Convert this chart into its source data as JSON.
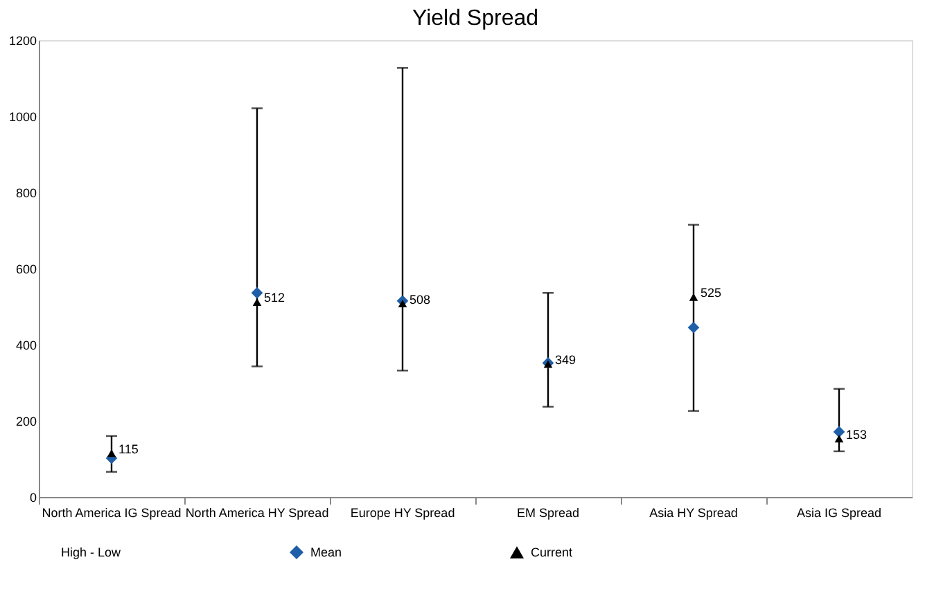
{
  "chart_data": {
    "type": "scatter",
    "title": "Yield Spread",
    "categories": [
      "North America IG Spread",
      "North America HY Spread",
      "Europe HY Spread",
      "EM Spread",
      "Asia HY Spread",
      "Asia IG Spread"
    ],
    "series": [
      {
        "name": "Mean",
        "marker": "diamond",
        "color": "#1f5fa8",
        "values": [
          102,
          536,
          515,
          352,
          445,
          171
        ],
        "errors": [
          [
            66,
            160
          ],
          [
            343,
            1021
          ],
          [
            332,
            1127
          ],
          [
            237,
            536
          ],
          [
            226,
            715
          ],
          [
            120,
            284
          ]
        ]
      },
      {
        "name": "Current",
        "marker": "triangle",
        "color": "#000000",
        "values": [
          115,
          512,
          508,
          349,
          525,
          153
        ],
        "value_labels": [
          "115",
          "512",
          "508",
          "349",
          "525",
          "153"
        ]
      }
    ],
    "annotations": [
      "High - Low"
    ],
    "ylim": [
      0,
      1200
    ],
    "yticks": [
      0,
      200,
      400,
      600,
      800,
      1000,
      1200
    ],
    "grid": false,
    "legend": "bottom"
  }
}
